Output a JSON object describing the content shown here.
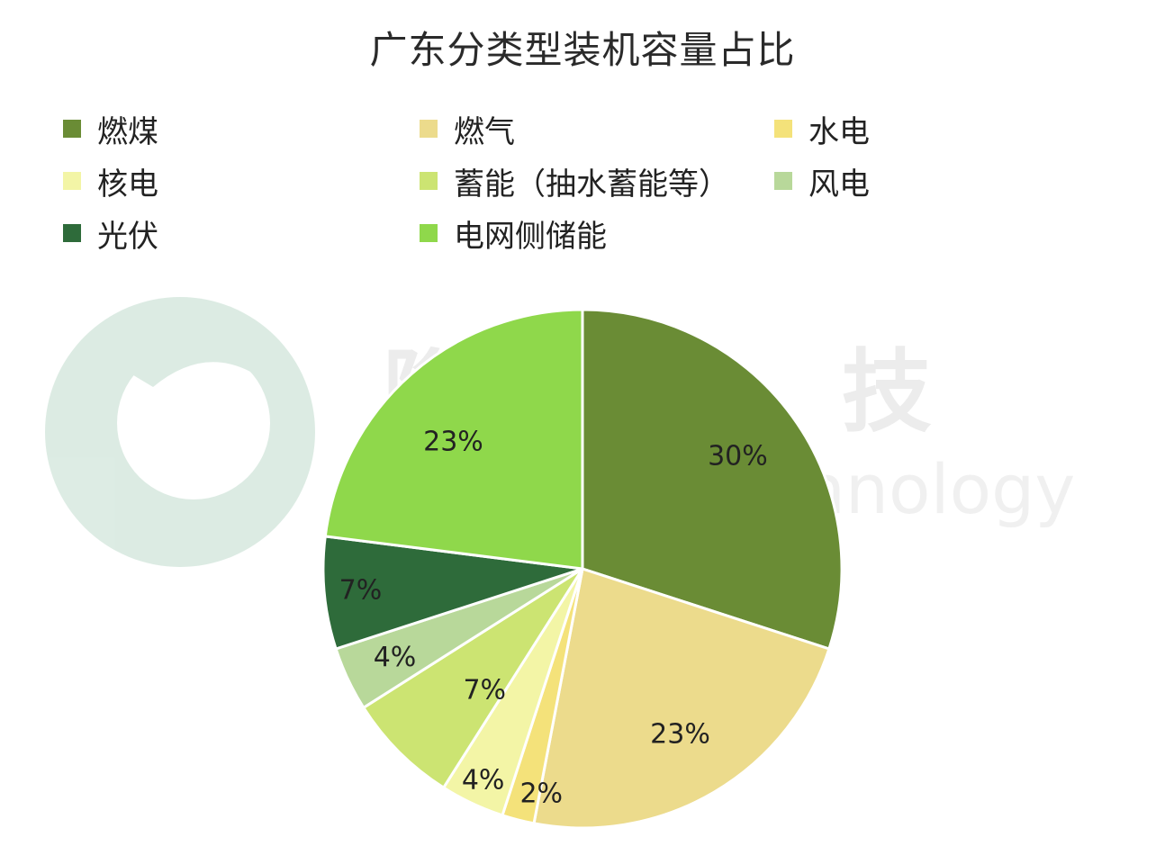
{
  "chart_data": {
    "type": "pie",
    "title": "广东分类型装机容量占比",
    "categories": [
      "燃煤",
      "燃气",
      "水电",
      "核电",
      "蓄能（抽水蓄能等）",
      "风电",
      "光伏",
      "电网侧储能"
    ],
    "values": [
      30,
      23,
      2,
      4,
      7,
      4,
      7,
      23
    ],
    "data_labels": [
      "30%",
      "23%",
      "2%",
      "4%",
      "7%",
      "4%",
      "7%",
      "23%"
    ],
    "colors": [
      "#6a8c35",
      "#ecdb8c",
      "#f4e27a",
      "#f3f5a6",
      "#cce472",
      "#b8d89a",
      "#2e6b3a",
      "#8fd84b"
    ],
    "legend_position": "top",
    "start_angle_deg": 0,
    "direction": "clockwise"
  },
  "watermark": {
    "cn_text": "隐 科 技",
    "en_text": "Trading Technology"
  }
}
